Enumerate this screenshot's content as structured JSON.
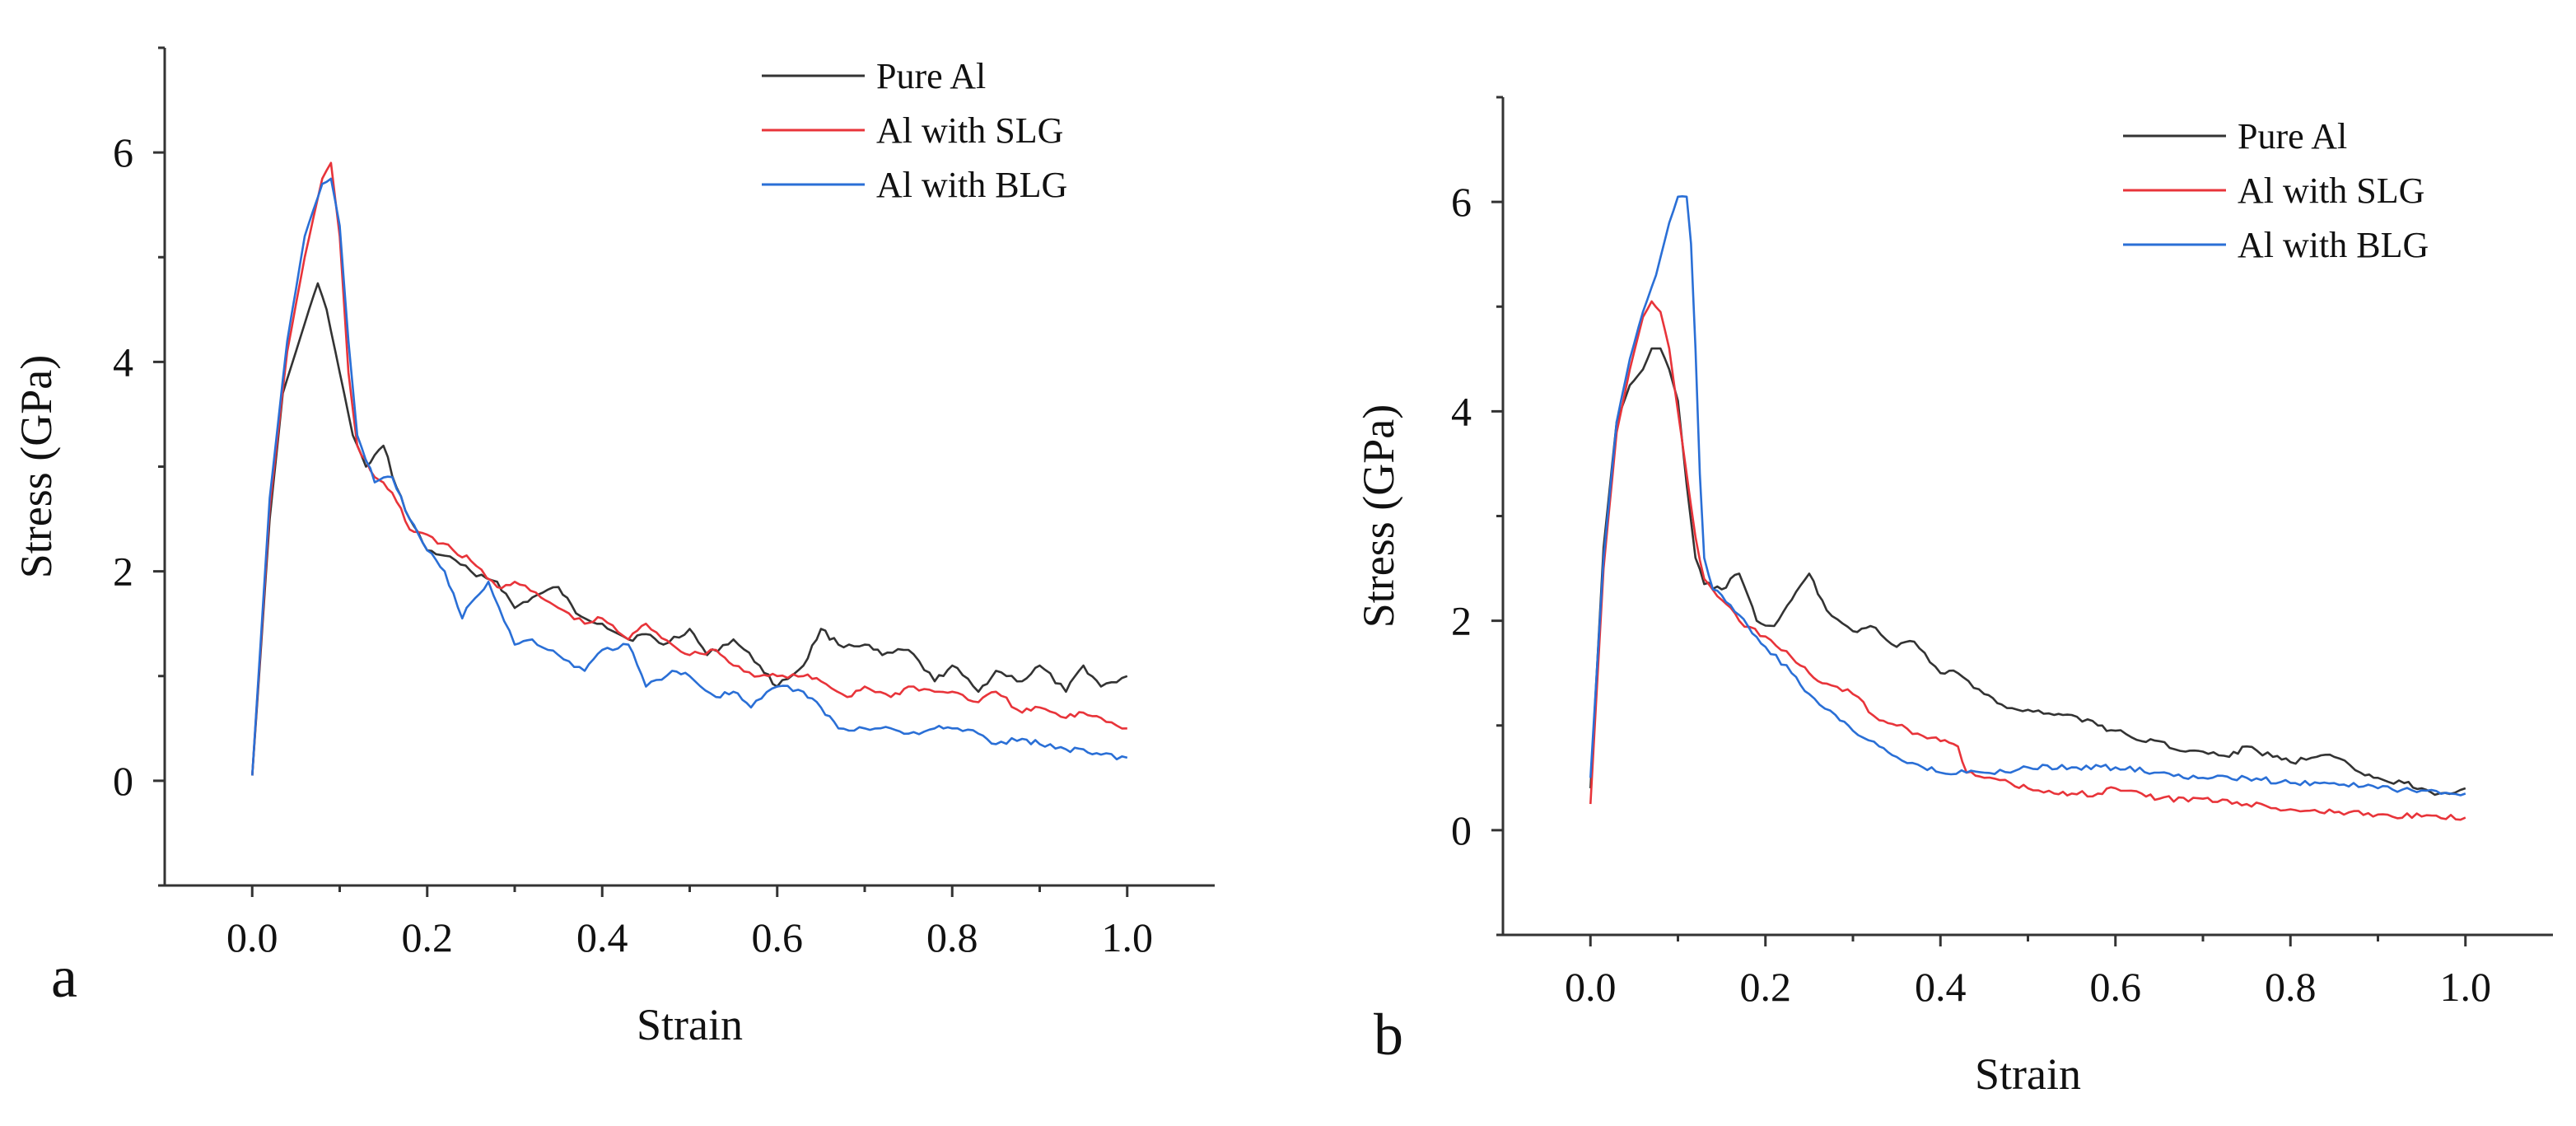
{
  "figure": {
    "panel_labels": [
      "a",
      "b"
    ]
  },
  "chart_data": [
    {
      "type": "line",
      "panel": "a",
      "title": "",
      "xlabel": "Strain",
      "ylabel": "Stress (GPa)",
      "xlim": [
        -0.1,
        1.1
      ],
      "ylim": [
        -1,
        7
      ],
      "xticks": [
        0.0,
        0.2,
        0.4,
        0.6,
        0.8,
        1.0
      ],
      "xtick_labels": [
        "0.0",
        "0.2",
        "0.4",
        "0.6",
        "0.8",
        "1.0"
      ],
      "yticks": [
        0,
        2,
        4,
        6
      ],
      "ytick_labels": [
        "0",
        "2",
        "4",
        "6"
      ],
      "grid": false,
      "legend_position": "top-right",
      "series": [
        {
          "name": "Pure Al",
          "color": "#333333",
          "x": [
            0,
            0.02,
            0.035,
            0.05,
            0.065,
            0.075,
            0.085,
            0.1,
            0.115,
            0.13,
            0.15,
            0.165,
            0.18,
            0.2,
            0.22,
            0.25,
            0.28,
            0.3,
            0.32,
            0.35,
            0.37,
            0.4,
            0.43,
            0.45,
            0.47,
            0.5,
            0.52,
            0.55,
            0.58,
            0.6,
            0.63,
            0.65,
            0.67,
            0.7,
            0.72,
            0.75,
            0.78,
            0.8,
            0.83,
            0.85,
            0.88,
            0.9,
            0.93,
            0.95,
            0.97,
            1.0
          ],
          "y": [
            0.05,
            2.5,
            3.7,
            4.1,
            4.5,
            4.75,
            4.5,
            3.9,
            3.3,
            3.0,
            3.2,
            2.8,
            2.5,
            2.2,
            2.15,
            2.0,
            1.9,
            1.65,
            1.75,
            1.85,
            1.6,
            1.5,
            1.35,
            1.4,
            1.3,
            1.45,
            1.2,
            1.35,
            1.1,
            0.9,
            1.1,
            1.45,
            1.3,
            1.3,
            1.2,
            1.25,
            0.95,
            1.1,
            0.85,
            1.05,
            0.95,
            1.1,
            0.85,
            1.1,
            0.9,
            1.0
          ]
        },
        {
          "name": "Al with SLG",
          "color": "#e8343a",
          "x": [
            0,
            0.02,
            0.04,
            0.06,
            0.08,
            0.09,
            0.1,
            0.11,
            0.12,
            0.14,
            0.16,
            0.18,
            0.2,
            0.23,
            0.25,
            0.28,
            0.3,
            0.33,
            0.35,
            0.38,
            0.4,
            0.43,
            0.45,
            0.48,
            0.5,
            0.53,
            0.55,
            0.58,
            0.6,
            0.63,
            0.65,
            0.68,
            0.7,
            0.73,
            0.75,
            0.78,
            0.8,
            0.83,
            0.85,
            0.88,
            0.9,
            0.93,
            0.95,
            0.97,
            1.0
          ],
          "y": [
            0.05,
            2.6,
            4.1,
            5.0,
            5.75,
            5.9,
            5.2,
            3.9,
            3.2,
            2.9,
            2.75,
            2.4,
            2.35,
            2.2,
            2.1,
            1.85,
            1.9,
            1.75,
            1.65,
            1.5,
            1.55,
            1.35,
            1.5,
            1.3,
            1.2,
            1.25,
            1.1,
            1.0,
            1.0,
            1.0,
            0.95,
            0.8,
            0.9,
            0.8,
            0.9,
            0.85,
            0.85,
            0.75,
            0.85,
            0.65,
            0.7,
            0.6,
            0.65,
            0.6,
            0.5
          ]
        },
        {
          "name": "Al with BLG",
          "color": "#2a6fd6",
          "x": [
            0,
            0.02,
            0.04,
            0.06,
            0.08,
            0.09,
            0.1,
            0.11,
            0.12,
            0.14,
            0.16,
            0.18,
            0.2,
            0.22,
            0.24,
            0.25,
            0.27,
            0.3,
            0.32,
            0.35,
            0.38,
            0.4,
            0.43,
            0.45,
            0.48,
            0.5,
            0.53,
            0.55,
            0.57,
            0.6,
            0.63,
            0.65,
            0.67,
            0.7,
            0.73,
            0.75,
            0.78,
            0.8,
            0.83,
            0.85,
            0.88,
            0.9,
            0.93,
            0.95,
            0.97,
            1.0
          ],
          "y": [
            0.05,
            2.7,
            4.2,
            5.2,
            5.7,
            5.75,
            5.3,
            4.2,
            3.3,
            2.85,
            2.9,
            2.5,
            2.2,
            2.0,
            1.55,
            1.7,
            1.9,
            1.3,
            1.35,
            1.2,
            1.05,
            1.25,
            1.3,
            0.9,
            1.05,
            1.0,
            0.8,
            0.85,
            0.7,
            0.9,
            0.85,
            0.7,
            0.5,
            0.5,
            0.5,
            0.45,
            0.5,
            0.5,
            0.45,
            0.35,
            0.4,
            0.35,
            0.3,
            0.3,
            0.25,
            0.22
          ]
        }
      ]
    },
    {
      "type": "line",
      "panel": "b",
      "title": "",
      "xlabel": "Strain",
      "ylabel": "Stress (GPa)",
      "xlim": [
        -0.1,
        1.1
      ],
      "ylim": [
        -1,
        7
      ],
      "xticks": [
        0.0,
        0.2,
        0.4,
        0.6,
        0.8,
        1.0
      ],
      "xtick_labels": [
        "0.0",
        "0.2",
        "0.4",
        "0.6",
        "0.8",
        "1.0"
      ],
      "yticks": [
        0,
        2,
        4,
        6
      ],
      "ytick_labels": [
        "0",
        "2",
        "4",
        "6"
      ],
      "grid": false,
      "legend_position": "top-right",
      "series": [
        {
          "name": "Pure Al",
          "color": "#333333",
          "x": [
            0,
            0.015,
            0.03,
            0.045,
            0.06,
            0.07,
            0.08,
            0.09,
            0.1,
            0.11,
            0.12,
            0.13,
            0.15,
            0.17,
            0.19,
            0.21,
            0.23,
            0.25,
            0.27,
            0.3,
            0.32,
            0.35,
            0.37,
            0.4,
            0.42,
            0.45,
            0.47,
            0.5,
            0.53,
            0.55,
            0.58,
            0.6,
            0.63,
            0.65,
            0.68,
            0.7,
            0.73,
            0.75,
            0.78,
            0.8,
            0.83,
            0.85,
            0.88,
            0.9,
            0.93,
            0.95,
            0.97,
            1.0
          ],
          "y": [
            0.4,
            2.7,
            3.9,
            4.25,
            4.4,
            4.6,
            4.6,
            4.4,
            4.1,
            3.3,
            2.6,
            2.35,
            2.3,
            2.45,
            2.0,
            1.95,
            2.2,
            2.45,
            2.1,
            1.9,
            1.95,
            1.75,
            1.8,
            1.5,
            1.5,
            1.3,
            1.2,
            1.15,
            1.1,
            1.1,
            1.0,
            0.95,
            0.85,
            0.85,
            0.75,
            0.75,
            0.7,
            0.8,
            0.7,
            0.65,
            0.7,
            0.7,
            0.55,
            0.5,
            0.45,
            0.4,
            0.35,
            0.4
          ]
        },
        {
          "name": "Al with SLG",
          "color": "#e8343a",
          "x": [
            0,
            0.015,
            0.03,
            0.045,
            0.06,
            0.07,
            0.08,
            0.09,
            0.1,
            0.11,
            0.12,
            0.13,
            0.15,
            0.17,
            0.2,
            0.23,
            0.25,
            0.27,
            0.3,
            0.33,
            0.35,
            0.38,
            0.4,
            0.42,
            0.43,
            0.45,
            0.48,
            0.5,
            0.53,
            0.55,
            0.58,
            0.6,
            0.63,
            0.65,
            0.7,
            0.75,
            0.8,
            0.85,
            0.9,
            0.95,
            1.0
          ],
          "y": [
            0.25,
            2.5,
            3.8,
            4.4,
            4.9,
            5.05,
            4.95,
            4.6,
            4.0,
            3.4,
            2.8,
            2.4,
            2.2,
            2.0,
            1.85,
            1.65,
            1.5,
            1.4,
            1.3,
            1.05,
            1.0,
            0.9,
            0.85,
            0.8,
            0.55,
            0.5,
            0.45,
            0.4,
            0.35,
            0.35,
            0.35,
            0.4,
            0.35,
            0.3,
            0.3,
            0.25,
            0.2,
            0.17,
            0.15,
            0.13,
            0.12
          ]
        },
        {
          "name": "Al with BLG",
          "color": "#2a6fd6",
          "x": [
            0,
            0.015,
            0.03,
            0.045,
            0.06,
            0.075,
            0.09,
            0.1,
            0.11,
            0.115,
            0.12,
            0.125,
            0.13,
            0.14,
            0.16,
            0.18,
            0.2,
            0.23,
            0.25,
            0.28,
            0.3,
            0.33,
            0.35,
            0.38,
            0.4,
            0.43,
            0.45,
            0.48,
            0.5,
            0.55,
            0.6,
            0.65,
            0.7,
            0.75,
            0.8,
            0.85,
            0.9,
            0.95,
            1.0
          ],
          "y": [
            0.5,
            2.6,
            3.9,
            4.5,
            4.95,
            5.3,
            5.8,
            6.05,
            6.05,
            5.6,
            4.6,
            3.4,
            2.6,
            2.3,
            2.15,
            1.95,
            1.75,
            1.5,
            1.3,
            1.1,
            0.95,
            0.8,
            0.7,
            0.6,
            0.55,
            0.55,
            0.55,
            0.55,
            0.6,
            0.6,
            0.6,
            0.55,
            0.5,
            0.5,
            0.45,
            0.45,
            0.4,
            0.38,
            0.35
          ]
        }
      ]
    }
  ]
}
